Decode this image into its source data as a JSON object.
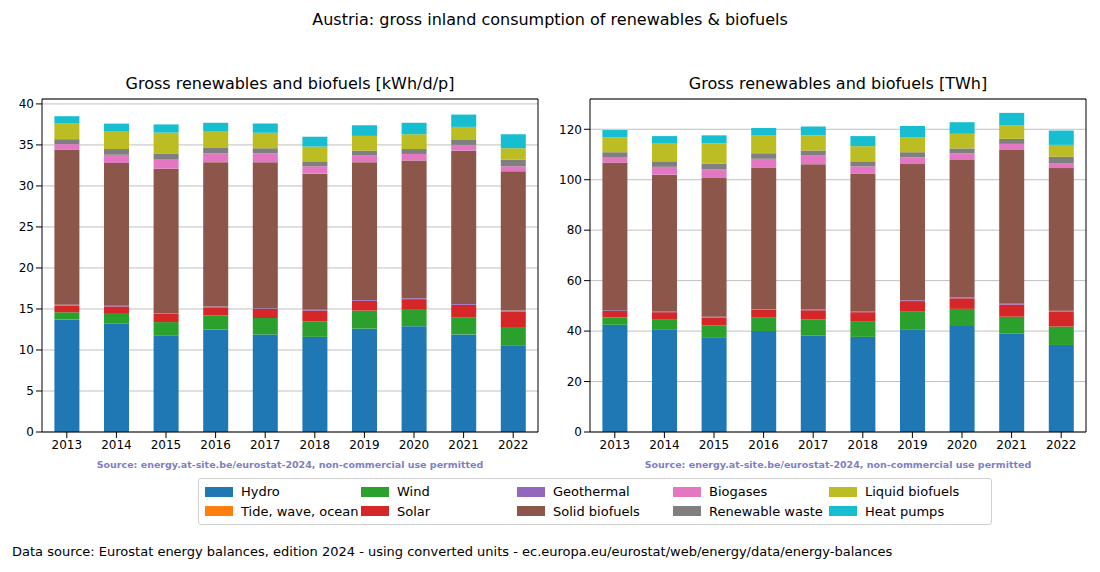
{
  "title": "Austria: gross inland consumption of renewables & biofuels",
  "footer": "Data source: Eurostat energy balances, edition 2024 - using converted units - ec.europa.eu/eurostat/web/energy/data/energy-balances",
  "chart_data": [
    {
      "type": "bar",
      "title": "Gross renewables and biofuels [kWh/d/p]",
      "annotations": [
        "Source: energy.at-site.be/eurostat-2024, non-commercial use permitted"
      ],
      "stacked": true,
      "grid": true,
      "categories": [
        "2013",
        "2014",
        "2015",
        "2016",
        "2017",
        "2018",
        "2019",
        "2020",
        "2021",
        "2022"
      ],
      "ylim": [
        0,
        40.6
      ],
      "yticks": [
        0,
        5,
        10,
        15,
        20,
        25,
        30,
        35,
        40
      ],
      "series": [
        {
          "name": "Hydro",
          "color": "#1f77b4",
          "values": [
            13.7,
            13.2,
            11.8,
            12.5,
            11.9,
            11.6,
            12.6,
            12.9,
            11.9,
            10.5
          ]
        },
        {
          "name": "Tide, wave, ocean",
          "color": "#ff7f0e",
          "values": [
            0,
            0,
            0,
            0,
            0,
            0,
            0,
            0,
            0,
            0
          ]
        },
        {
          "name": "Wind",
          "color": "#2ca02c",
          "values": [
            0.9,
            1.2,
            1.6,
            1.7,
            2.0,
            1.9,
            2.2,
            2.0,
            2.1,
            2.3
          ]
        },
        {
          "name": "Solar",
          "color": "#d62728",
          "values": [
            0.8,
            0.9,
            1.0,
            1.0,
            1.1,
            1.3,
            1.2,
            1.3,
            1.5,
            1.9
          ]
        },
        {
          "name": "Geothermal",
          "color": "#9467bd",
          "values": [
            0.1,
            0.1,
            0.1,
            0.1,
            0.1,
            0.1,
            0.1,
            0.1,
            0.1,
            0.1
          ]
        },
        {
          "name": "Solid biofuels",
          "color": "#8c564b",
          "values": [
            18.9,
            17.4,
            17.6,
            17.6,
            17.8,
            16.6,
            16.8,
            16.8,
            18.7,
            17.0
          ]
        },
        {
          "name": "Biogases",
          "color": "#e377c2",
          "values": [
            0.7,
            1.0,
            1.1,
            1.1,
            1.1,
            0.9,
            0.8,
            0.8,
            0.7,
            0.6
          ]
        },
        {
          "name": "Renewable waste",
          "color": "#7f7f7f",
          "values": [
            0.6,
            0.7,
            0.7,
            0.7,
            0.6,
            0.6,
            0.6,
            0.6,
            0.6,
            0.8
          ]
        },
        {
          "name": "Liquid biofuels",
          "color": "#bcbd22",
          "values": [
            1.9,
            2.2,
            2.6,
            2.0,
            1.9,
            1.8,
            1.8,
            1.8,
            1.6,
            1.4
          ]
        },
        {
          "name": "Heat pumps",
          "color": "#17becf",
          "values": [
            0.9,
            0.9,
            1.0,
            1.0,
            1.1,
            1.2,
            1.3,
            1.4,
            1.5,
            1.7
          ]
        }
      ]
    },
    {
      "type": "bar",
      "title": "Gross renewables and biofuels [TWh]",
      "annotations": [
        "Source: energy.at-site.be/eurostat-2024, non-commercial use permitted"
      ],
      "stacked": true,
      "grid": true,
      "categories": [
        "2013",
        "2014",
        "2015",
        "2016",
        "2017",
        "2018",
        "2019",
        "2020",
        "2021",
        "2022"
      ],
      "ylim": [
        0,
        132
      ],
      "yticks": [
        0,
        20,
        40,
        60,
        80,
        100,
        120
      ],
      "series": [
        {
          "name": "Hydro",
          "color": "#1f77b4",
          "values": [
            42.5,
            40.5,
            37.3,
            40.0,
            38.2,
            37.7,
            40.5,
            42.0,
            39.0,
            34.5
          ]
        },
        {
          "name": "Tide, wave, ocean",
          "color": "#ff7f0e",
          "values": [
            0,
            0,
            0,
            0,
            0,
            0,
            0,
            0,
            0,
            0
          ]
        },
        {
          "name": "Wind",
          "color": "#2ca02c",
          "values": [
            2.9,
            4.0,
            4.9,
            5.3,
            6.5,
            6.0,
            7.4,
            6.8,
            6.7,
            7.3
          ]
        },
        {
          "name": "Solar",
          "color": "#d62728",
          "values": [
            2.6,
            3.0,
            3.2,
            3.2,
            3.6,
            3.8,
            4.0,
            4.2,
            4.8,
            6.0
          ]
        },
        {
          "name": "Geothermal",
          "color": "#9467bd",
          "values": [
            0.3,
            0.3,
            0.3,
            0.3,
            0.3,
            0.3,
            0.3,
            0.3,
            0.3,
            0.3
          ]
        },
        {
          "name": "Solid biofuels",
          "color": "#8c564b",
          "values": [
            58.5,
            54.2,
            55.0,
            56.0,
            57.5,
            54.5,
            54.0,
            54.5,
            61.0,
            56.5
          ]
        },
        {
          "name": "Biogases",
          "color": "#e377c2",
          "values": [
            2.2,
            3.1,
            3.5,
            3.5,
            3.5,
            3.0,
            2.7,
            2.6,
            2.4,
            2.0
          ]
        },
        {
          "name": "Renewable waste",
          "color": "#7f7f7f",
          "values": [
            1.9,
            2.2,
            2.2,
            2.2,
            2.0,
            2.0,
            2.0,
            2.0,
            2.0,
            2.5
          ]
        },
        {
          "name": "Liquid biofuels",
          "color": "#bcbd22",
          "values": [
            5.9,
            7.0,
            8.0,
            7.0,
            6.0,
            6.0,
            6.0,
            5.8,
            5.3,
            4.7
          ]
        },
        {
          "name": "Heat pumps",
          "color": "#17becf",
          "values": [
            2.9,
            3.0,
            3.2,
            3.0,
            3.5,
            4.0,
            4.4,
            4.6,
            5.0,
            5.7
          ]
        }
      ]
    }
  ]
}
